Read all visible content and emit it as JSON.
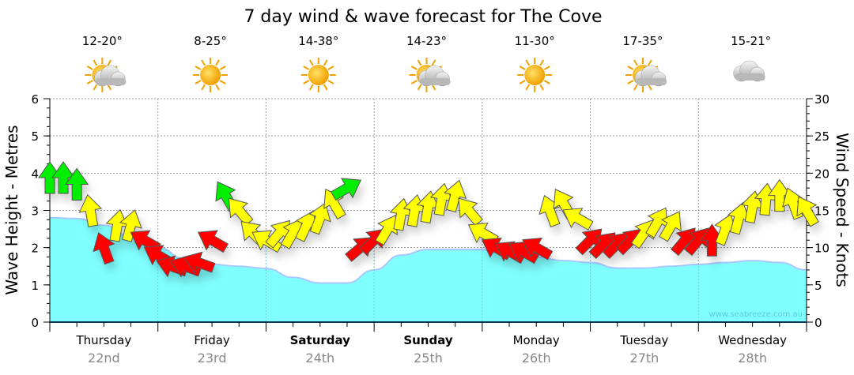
{
  "chart_data": {
    "type": "area",
    "title": "7 day wind & wave forecast for The Cove",
    "ylabel_left": "Wave Height - Metres",
    "ylabel_right": "Wind Speed - Knots",
    "ylim_left": [
      0,
      6
    ],
    "ylim_right": [
      0,
      30
    ],
    "left_ticks": [
      "0",
      "1",
      "2",
      "3",
      "4",
      "5",
      "6"
    ],
    "right_ticks": [
      "0",
      "5",
      "10",
      "15",
      "20",
      "25",
      "30"
    ],
    "grid": true,
    "watermark": "www.seabreeze.com.au",
    "days": [
      {
        "day": "Thursday",
        "date": "22nd",
        "temp": "12-20°",
        "icon": "partly-cloudy",
        "bold": false
      },
      {
        "day": "Friday",
        "date": "23rd",
        "temp": "8-25°",
        "icon": "sunny",
        "bold": false
      },
      {
        "day": "Saturday",
        "date": "24th",
        "temp": "14-38°",
        "icon": "sunny",
        "bold": true
      },
      {
        "day": "Sunday",
        "date": "25th",
        "temp": "14-23°",
        "icon": "partly-cloudy",
        "bold": true
      },
      {
        "day": "Monday",
        "date": "26th",
        "temp": "11-30°",
        "icon": "sunny",
        "bold": false
      },
      {
        "day": "Tuesday",
        "date": "27th",
        "temp": "17-35°",
        "icon": "partly-cloudy",
        "bold": false
      },
      {
        "day": "Wednesday",
        "date": "28th",
        "temp": "15-21°",
        "icon": "cloudy",
        "bold": false
      }
    ],
    "wave_series": {
      "name": "Wave height (m)",
      "x_days": [
        0,
        0.25,
        0.5,
        0.75,
        1,
        1.25,
        1.5,
        1.75,
        2,
        2.25,
        2.5,
        2.75,
        3,
        3.25,
        3.5,
        3.75,
        4,
        4.25,
        4.5,
        4.75,
        5,
        5.25,
        5.5,
        5.75,
        6,
        6.25,
        6.5,
        6.75,
        7
      ],
      "values": [
        2.8,
        2.78,
        2.6,
        2.3,
        2.0,
        1.7,
        1.55,
        1.5,
        1.44,
        1.2,
        1.05,
        1.05,
        1.4,
        1.8,
        1.95,
        1.95,
        1.95,
        1.85,
        1.75,
        1.65,
        1.6,
        1.45,
        1.45,
        1.5,
        1.55,
        1.6,
        1.65,
        1.6,
        1.4
      ],
      "color": "#80ffff"
    },
    "wind_series": {
      "name": "Wind speed (knots) & direction",
      "colors": {
        "green": "#00ee00",
        "yellow": "#ffff00",
        "red": "#ff0000"
      },
      "points": [
        {
          "t": 0,
          "kn": 19.4,
          "dir": 0,
          "c": "green"
        },
        {
          "t": 0.125,
          "kn": 19.4,
          "dir": 0,
          "c": "green"
        },
        {
          "t": 0.25,
          "kn": 18.5,
          "dir": 0,
          "c": "green"
        },
        {
          "t": 0.375,
          "kn": 15,
          "dir": 350,
          "c": "yellow"
        },
        {
          "t": 0.5,
          "kn": 10,
          "dir": 340,
          "c": "red"
        },
        {
          "t": 0.625,
          "kn": 13,
          "dir": 10,
          "c": "yellow"
        },
        {
          "t": 0.75,
          "kn": 13,
          "dir": 15,
          "c": "yellow"
        },
        {
          "t": 0.875,
          "kn": 11,
          "dir": 300,
          "c": "red"
        },
        {
          "t": 1,
          "kn": 9,
          "dir": 300,
          "c": "red"
        },
        {
          "t": 1.125,
          "kn": 7.5,
          "dir": 290,
          "c": "red"
        },
        {
          "t": 1.25,
          "kn": 7.5,
          "dir": 290,
          "c": "red"
        },
        {
          "t": 1.375,
          "kn": 8,
          "dir": 290,
          "c": "red"
        },
        {
          "t": 1.5,
          "kn": 11,
          "dir": 300,
          "c": "red"
        },
        {
          "t": 1.625,
          "kn": 17,
          "dir": 330,
          "c": "green"
        },
        {
          "t": 1.75,
          "kn": 15,
          "dir": 320,
          "c": "yellow"
        },
        {
          "t": 1.875,
          "kn": 12,
          "dir": 315,
          "c": "yellow"
        },
        {
          "t": 2,
          "kn": 11,
          "dir": 300,
          "c": "yellow"
        },
        {
          "t": 2.125,
          "kn": 12,
          "dir": 40,
          "c": "yellow"
        },
        {
          "t": 2.25,
          "kn": 12,
          "dir": 30,
          "c": "yellow"
        },
        {
          "t": 2.375,
          "kn": 13,
          "dir": 25,
          "c": "yellow"
        },
        {
          "t": 2.5,
          "kn": 14,
          "dir": 20,
          "c": "yellow"
        },
        {
          "t": 2.625,
          "kn": 16,
          "dir": 330,
          "c": "yellow"
        },
        {
          "t": 2.75,
          "kn": 18,
          "dir": 60,
          "c": "green"
        },
        {
          "t": 2.875,
          "kn": 10,
          "dir": 50,
          "c": "red"
        },
        {
          "t": 3,
          "kn": 11,
          "dir": 45,
          "c": "red"
        },
        {
          "t": 3.125,
          "kn": 12.5,
          "dir": 30,
          "c": "yellow"
        },
        {
          "t": 3.25,
          "kn": 14.5,
          "dir": 10,
          "c": "yellow"
        },
        {
          "t": 3.375,
          "kn": 15,
          "dir": 10,
          "c": "yellow"
        },
        {
          "t": 3.5,
          "kn": 15.5,
          "dir": 10,
          "c": "yellow"
        },
        {
          "t": 3.625,
          "kn": 16.5,
          "dir": 10,
          "c": "yellow"
        },
        {
          "t": 3.75,
          "kn": 17,
          "dir": 15,
          "c": "yellow"
        },
        {
          "t": 3.875,
          "kn": 15,
          "dir": 320,
          "c": "yellow"
        },
        {
          "t": 4,
          "kn": 12,
          "dir": 300,
          "c": "yellow"
        },
        {
          "t": 4.125,
          "kn": 10,
          "dir": 300,
          "c": "red"
        },
        {
          "t": 4.25,
          "kn": 9.5,
          "dir": 300,
          "c": "red"
        },
        {
          "t": 4.375,
          "kn": 9.5,
          "dir": 300,
          "c": "red"
        },
        {
          "t": 4.5,
          "kn": 10,
          "dir": 300,
          "c": "red"
        },
        {
          "t": 4.625,
          "kn": 15,
          "dir": 340,
          "c": "yellow"
        },
        {
          "t": 4.75,
          "kn": 16,
          "dir": 330,
          "c": "yellow"
        },
        {
          "t": 4.875,
          "kn": 14,
          "dir": 300,
          "c": "yellow"
        },
        {
          "t": 5,
          "kn": 11,
          "dir": 45,
          "c": "red"
        },
        {
          "t": 5.125,
          "kn": 10.5,
          "dir": 45,
          "c": "red"
        },
        {
          "t": 5.25,
          "kn": 10.5,
          "dir": 45,
          "c": "red"
        },
        {
          "t": 5.375,
          "kn": 11,
          "dir": 45,
          "c": "red"
        },
        {
          "t": 5.5,
          "kn": 12,
          "dir": 35,
          "c": "yellow"
        },
        {
          "t": 5.625,
          "kn": 13.5,
          "dir": 30,
          "c": "yellow"
        },
        {
          "t": 5.75,
          "kn": 13,
          "dir": 30,
          "c": "yellow"
        },
        {
          "t": 5.875,
          "kn": 11,
          "dir": 40,
          "c": "red"
        },
        {
          "t": 6,
          "kn": 11,
          "dir": 40,
          "c": "red"
        },
        {
          "t": 6.125,
          "kn": 11,
          "dir": 0,
          "c": "red"
        },
        {
          "t": 6.25,
          "kn": 12.5,
          "dir": 20,
          "c": "yellow"
        },
        {
          "t": 6.375,
          "kn": 14,
          "dir": 15,
          "c": "yellow"
        },
        {
          "t": 6.5,
          "kn": 15.5,
          "dir": 10,
          "c": "yellow"
        },
        {
          "t": 6.625,
          "kn": 16.5,
          "dir": 5,
          "c": "yellow"
        },
        {
          "t": 6.75,
          "kn": 17,
          "dir": 0,
          "c": "yellow"
        },
        {
          "t": 6.875,
          "kn": 16,
          "dir": 340,
          "c": "yellow"
        },
        {
          "t": 7,
          "kn": 15,
          "dir": 330,
          "c": "yellow"
        }
      ]
    }
  }
}
